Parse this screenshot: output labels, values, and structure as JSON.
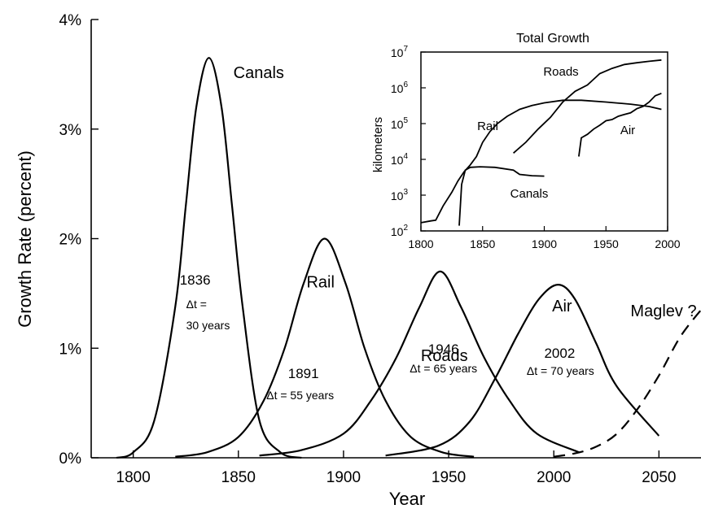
{
  "chart_data": [
    {
      "type": "line",
      "xlabel": "Year",
      "ylabel": "Growth Rate (percent)",
      "xlim": [
        1780,
        2070
      ],
      "ylim": [
        0,
        4
      ],
      "x_ticks": [
        "1800",
        "1850",
        "1900",
        "1950",
        "2000",
        "2050"
      ],
      "y_ticks": [
        "0%",
        "1%",
        "2%",
        "3%",
        "4%"
      ],
      "series": [
        {
          "name": "Canals",
          "peak_year": 1836,
          "peak_rate": 3.65,
          "peak_label": "1836",
          "dt_label": "Δt =",
          "dt_value": "30 years",
          "dashed": false,
          "x": [
            1792,
            1800,
            1810,
            1820,
            1825,
            1830,
            1836,
            1842,
            1847,
            1852,
            1860,
            1870,
            1880
          ],
          "y": [
            0.0,
            0.05,
            0.34,
            1.38,
            2.3,
            3.2,
            3.65,
            3.2,
            2.3,
            1.38,
            0.34,
            0.05,
            0.0
          ]
        },
        {
          "name": "Rail",
          "peak_year": 1891,
          "peak_rate": 2.0,
          "peak_label": "1891",
          "dt_label": "Δt = 55 years",
          "dashed": false,
          "x": [
            1820,
            1835,
            1850,
            1862,
            1872,
            1881,
            1891,
            1901,
            1910,
            1920,
            1932,
            1947,
            1962
          ],
          "y": [
            0.01,
            0.05,
            0.19,
            0.52,
            1.0,
            1.59,
            2.0,
            1.59,
            1.0,
            0.52,
            0.19,
            0.05,
            0.01
          ]
        },
        {
          "name": "Roads",
          "peak_year": 1946,
          "peak_rate": 1.7,
          "peak_label": "1946",
          "dt_label": "Δt = 65 years",
          "dashed": false,
          "x": [
            1860,
            1880,
            1900,
            1913,
            1925,
            1936,
            1946,
            1956,
            1967,
            1979,
            1992,
            2012
          ],
          "y": [
            0.02,
            0.07,
            0.22,
            0.52,
            0.91,
            1.37,
            1.7,
            1.37,
            0.91,
            0.52,
            0.22,
            0.05
          ]
        },
        {
          "name": "Air",
          "peak_year": 2002,
          "peak_rate": 1.58,
          "peak_label": "2002",
          "dt_label": "Δt = 70 years",
          "dashed": false,
          "x": [
            1920,
            1945,
            1960,
            1972,
            1983,
            1993,
            2002,
            2010,
            2020,
            2030,
            2050
          ],
          "y": [
            0.02,
            0.11,
            0.33,
            0.72,
            1.13,
            1.45,
            1.58,
            1.45,
            1.05,
            0.65,
            0.2
          ]
        },
        {
          "name": "Maglev ?",
          "dashed": true,
          "x": [
            2000,
            2010,
            2020,
            2030,
            2040,
            2050,
            2060,
            2070
          ],
          "y": [
            0.01,
            0.04,
            0.1,
            0.22,
            0.45,
            0.75,
            1.1,
            1.35
          ]
        }
      ]
    },
    {
      "type": "line",
      "title": "Total Growth",
      "xlabel": "",
      "ylabel": "kilometers",
      "xlim": [
        1800,
        2000
      ],
      "ylim_log10": [
        2,
        7
      ],
      "y_scale": "log",
      "x_ticks": [
        "1800",
        "1850",
        "1900",
        "1950",
        "2000"
      ],
      "y_ticks": [
        {
          "base": "10",
          "exp": "2"
        },
        {
          "base": "10",
          "exp": "3"
        },
        {
          "base": "10",
          "exp": "4"
        },
        {
          "base": "10",
          "exp": "5"
        },
        {
          "base": "10",
          "exp": "6"
        },
        {
          "base": "10",
          "exp": "7"
        }
      ],
      "series": [
        {
          "name": "Canals",
          "x": [
            1831,
            1833,
            1836,
            1840,
            1848,
            1860,
            1875,
            1880,
            1890,
            1900
          ],
          "y": [
            140,
            2000,
            5000,
            6000,
            6200,
            6000,
            5000,
            3800,
            3500,
            3400
          ]
        },
        {
          "name": "Rail",
          "x": [
            1800,
            1808,
            1812,
            1818,
            1825,
            1830,
            1835,
            1840,
            1845,
            1850,
            1856,
            1862,
            1870,
            1880,
            1890,
            1900,
            1915,
            1930,
            1950,
            1970,
            1985,
            1995
          ],
          "y": [
            170,
            190,
            200,
            500,
            1200,
            2500,
            4500,
            7000,
            12000,
            30000,
            60000,
            100000,
            160000,
            250000,
            320000,
            380000,
            450000,
            450000,
            400000,
            350000,
            300000,
            250000
          ]
        },
        {
          "name": "Roads",
          "x": [
            1875,
            1885,
            1895,
            1905,
            1915,
            1925,
            1935,
            1945,
            1955,
            1965,
            1975,
            1985,
            1995
          ],
          "y": [
            15000,
            30000,
            70000,
            150000,
            400000,
            800000,
            1200000,
            2500000,
            3500000,
            4500000,
            5000000,
            5500000,
            6000000
          ]
        },
        {
          "name": "Air",
          "x": [
            1928,
            1930,
            1935,
            1940,
            1945,
            1950,
            1955,
            1960,
            1965,
            1970,
            1975,
            1980,
            1985,
            1990,
            1995
          ],
          "y": [
            12000,
            40000,
            50000,
            70000,
            90000,
            120000,
            130000,
            160000,
            180000,
            200000,
            260000,
            300000,
            400000,
            600000,
            700000
          ]
        }
      ]
    }
  ]
}
